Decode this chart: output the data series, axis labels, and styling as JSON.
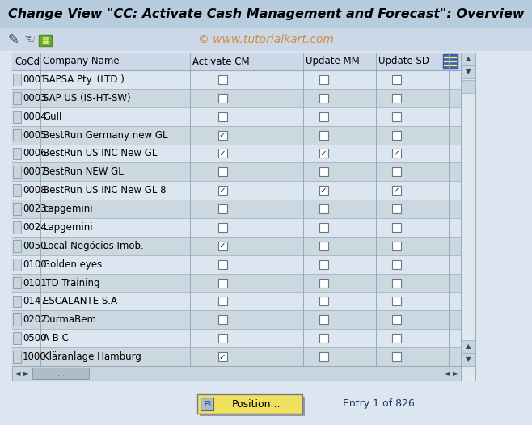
{
  "title": "Change View \"CC: Activate Cash Management and Forecast\": Overview",
  "watermark": "© www.tutorialkart.com",
  "bg_color": "#dce6f0",
  "title_bar_color": "#b8cce0",
  "toolbar_color": "#ccd8e8",
  "table_header_color": "#ccd8e8",
  "table_row_even": "#dce6f0",
  "table_row_odd": "#ccd8e0",
  "table_border_color": "#9aaabb",
  "scrollbar_color": "#c8d4e0",
  "scrollbar_track": "#e0e8f0",
  "rows": [
    {
      "code": "0001",
      "name": "SAPSA Pty. (LTD.)",
      "cm": false,
      "mm": false,
      "sd": false
    },
    {
      "code": "0003",
      "name": "SAP US (IS-HT-SW)",
      "cm": false,
      "mm": false,
      "sd": false
    },
    {
      "code": "0004",
      "name": "Gull",
      "cm": false,
      "mm": false,
      "sd": false
    },
    {
      "code": "0005",
      "name": "BestRun Germany new GL",
      "cm": true,
      "mm": false,
      "sd": false
    },
    {
      "code": "0006",
      "name": "BestRun US INC New GL",
      "cm": true,
      "mm": true,
      "sd": true
    },
    {
      "code": "0007",
      "name": "BestRun NEW GL",
      "cm": false,
      "mm": false,
      "sd": false
    },
    {
      "code": "0008",
      "name": "BestRun US INC New GL 8",
      "cm": true,
      "mm": true,
      "sd": true
    },
    {
      "code": "0023",
      "name": "capgemini",
      "cm": false,
      "mm": false,
      "sd": false
    },
    {
      "code": "0024",
      "name": "capgemini",
      "cm": false,
      "mm": false,
      "sd": false
    },
    {
      "code": "0050",
      "name": "Local Negócios Imob.",
      "cm": true,
      "mm": false,
      "sd": false
    },
    {
      "code": "0100",
      "name": "Golden eyes",
      "cm": false,
      "mm": false,
      "sd": false
    },
    {
      "code": "0101",
      "name": "iTD Training",
      "cm": false,
      "mm": false,
      "sd": false
    },
    {
      "code": "0147",
      "name": "ESCALANTE S.A",
      "cm": false,
      "mm": false,
      "sd": false
    },
    {
      "code": "0202",
      "name": "DurmaBem",
      "cm": false,
      "mm": false,
      "sd": false
    },
    {
      "code": "0500",
      "name": "A B C",
      "cm": false,
      "mm": false,
      "sd": false
    },
    {
      "code": "1000",
      "name": "Kläranlage Hamburg",
      "cm": true,
      "mm": false,
      "sd": false
    }
  ],
  "col_headers": [
    "CoCd",
    "Company Name",
    "Activate CM",
    "Update MM",
    "Update SD"
  ],
  "position_btn_text": "Position...",
  "entry_text": "Entry 1 of 826",
  "fig_width": 6.58,
  "fig_height": 5.26,
  "dpi": 100
}
